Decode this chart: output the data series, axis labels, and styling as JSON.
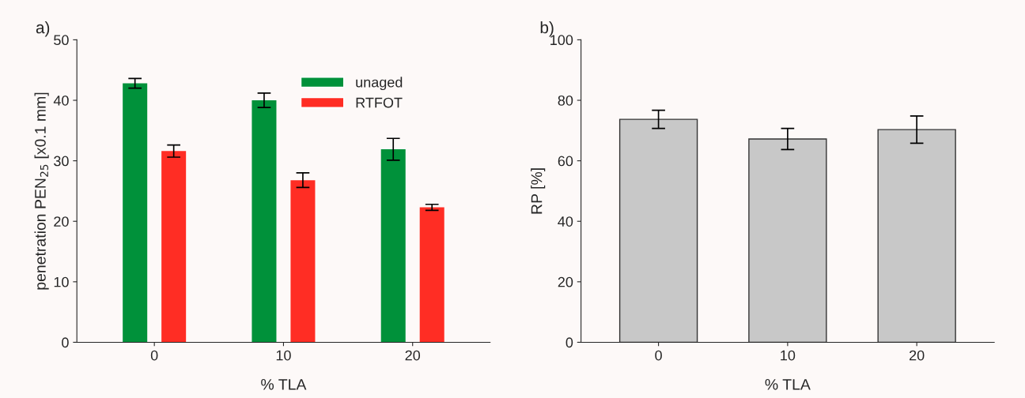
{
  "chart_data": [
    {
      "type": "bar",
      "title": "a)",
      "xlabel": "% TLA",
      "ylabel": "penetration PEN$_{25}$ [x0.1 mm]",
      "categories": [
        "0",
        "10",
        "20"
      ],
      "series": [
        {
          "name": "unaged",
          "color": "#00913a",
          "values": [
            42.8,
            40.0,
            31.9
          ],
          "errors": [
            0.8,
            1.2,
            1.8
          ]
        },
        {
          "name": "RTFOT",
          "color": "#ff2d24",
          "values": [
            31.6,
            26.8,
            22.3
          ],
          "errors": [
            1.0,
            1.2,
            0.5
          ]
        }
      ],
      "ylim": [
        0,
        50
      ],
      "yticks": [
        0,
        10,
        20,
        30,
        40,
        50
      ],
      "legend": "top right",
      "grid": false
    },
    {
      "type": "bar",
      "title": "b)",
      "xlabel": "% TLA",
      "ylabel": "RP [%]",
      "categories": [
        "0",
        "10",
        "20"
      ],
      "series": [
        {
          "color": "#c8c8c8",
          "values": [
            73.7,
            67.2,
            70.3
          ],
          "errors": [
            3.0,
            3.5,
            4.5
          ]
        }
      ],
      "ylim": [
        0,
        100
      ],
      "yticks": [
        0,
        20,
        40,
        60,
        80,
        100
      ],
      "grid": false
    }
  ]
}
